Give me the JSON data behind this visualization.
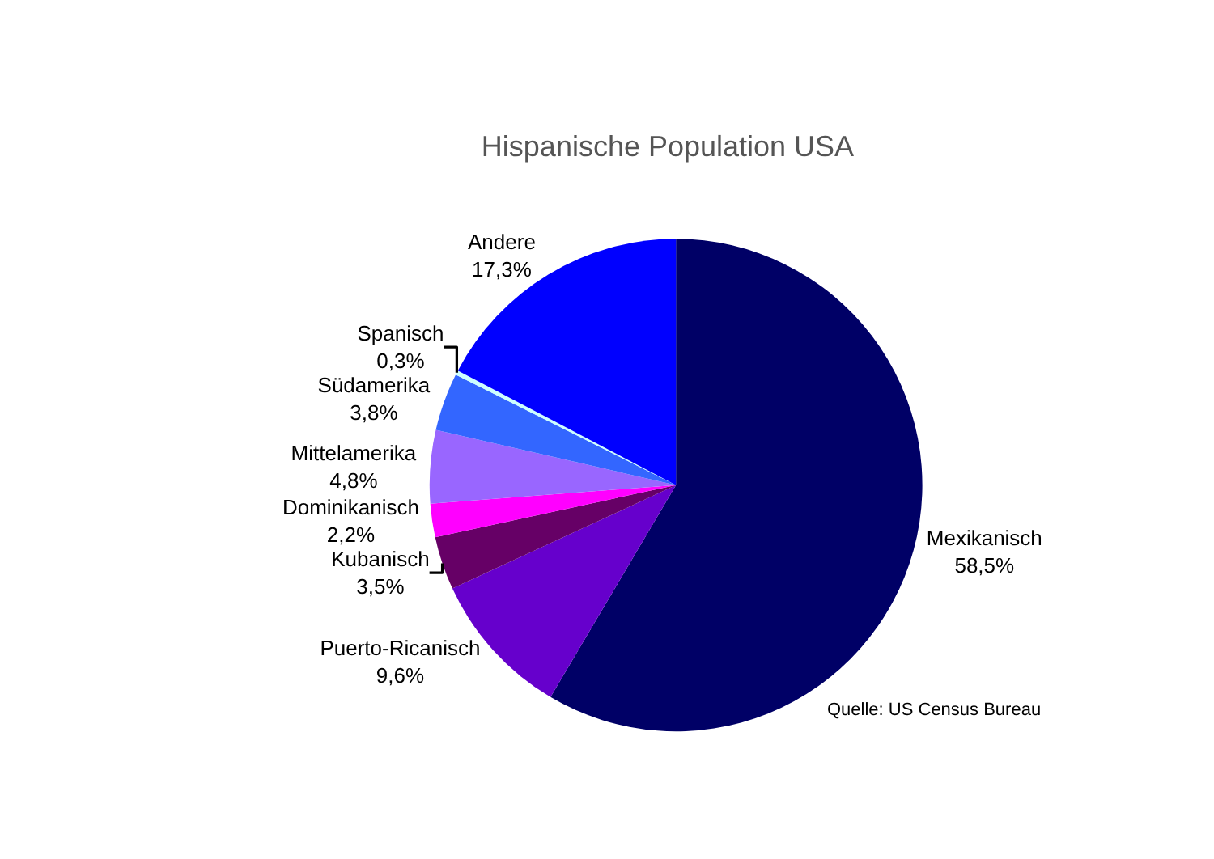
{
  "chart_data": {
    "type": "pie",
    "title": "Hispanische Population USA",
    "categories": [
      "Mexikanisch",
      "Puerto-Ricanisch",
      "Kubanisch",
      "Dominikanisch",
      "Mittelamerika",
      "Südamerika",
      "Spanisch",
      "Andere"
    ],
    "values": [
      58.5,
      9.6,
      3.5,
      2.2,
      4.8,
      3.8,
      0.3,
      17.3
    ],
    "value_labels": [
      "58,5%",
      "9,6%",
      "3,5%",
      "2,2%",
      "4,8%",
      "3,8%",
      "0,3%",
      "17,3%"
    ],
    "colors": [
      "#000066",
      "#6600cc",
      "#660066",
      "#ff00ff",
      "#9966ff",
      "#3366ff",
      "#ccffff",
      "#0000ff"
    ],
    "annotations": [
      "Quelle: US Census Bureau"
    ],
    "legend": false
  }
}
